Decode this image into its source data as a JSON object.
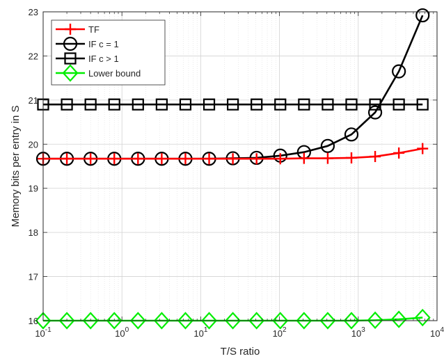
{
  "chart_data": {
    "type": "line",
    "xlabel": "T/S ratio",
    "ylabel": "Memory bits per entry in S",
    "xscale": "log",
    "xlim": [
      0.1,
      10000
    ],
    "ylim": [
      16,
      23
    ],
    "xticks": [
      {
        "value": 0.1,
        "base": "10",
        "exp": "-1"
      },
      {
        "value": 1,
        "base": "10",
        "exp": "0"
      },
      {
        "value": 10,
        "base": "10",
        "exp": "1"
      },
      {
        "value": 100,
        "base": "10",
        "exp": "2"
      },
      {
        "value": 1000,
        "base": "10",
        "exp": "3"
      },
      {
        "value": 10000,
        "base": "10",
        "exp": "4"
      }
    ],
    "yticks": [
      16,
      17,
      18,
      19,
      20,
      21,
      22,
      23
    ],
    "grid": true,
    "legend_position": "top-left",
    "x": [
      0.1,
      0.2,
      0.4,
      0.8,
      1.6,
      3.2,
      6.4,
      12.8,
      25.6,
      51.2,
      102.4,
      204.8,
      409.6,
      819.2,
      1638.4,
      3276.8,
      6553.6
    ],
    "series": [
      {
        "name": "TF",
        "color": "#ff0000",
        "marker": "plus",
        "values": [
          19.67,
          19.67,
          19.67,
          19.67,
          19.67,
          19.67,
          19.67,
          19.67,
          19.67,
          19.67,
          19.67,
          19.68,
          19.68,
          19.69,
          19.72,
          19.8,
          19.9
        ]
      },
      {
        "name": "IF c = 1",
        "color": "#000000",
        "marker": "circle",
        "values": [
          19.67,
          19.67,
          19.67,
          19.67,
          19.67,
          19.67,
          19.67,
          19.67,
          19.68,
          19.69,
          19.74,
          19.82,
          19.96,
          20.22,
          20.72,
          21.65,
          22.92
        ]
      },
      {
        "name": "IF c > 1",
        "color": "#000000",
        "marker": "square",
        "values": [
          20.9,
          20.9,
          20.9,
          20.9,
          20.9,
          20.9,
          20.9,
          20.9,
          20.9,
          20.9,
          20.9,
          20.9,
          20.9,
          20.9,
          20.9,
          20.9,
          20.9
        ]
      },
      {
        "name": "Lower bound",
        "color": "#00ee00",
        "marker": "diamond",
        "values": [
          16.0,
          16.0,
          16.0,
          16.0,
          16.0,
          16.0,
          16.0,
          16.0,
          16.0,
          16.0,
          16.0,
          16.0,
          16.0,
          16.0,
          16.01,
          16.03,
          16.07
        ]
      }
    ]
  }
}
